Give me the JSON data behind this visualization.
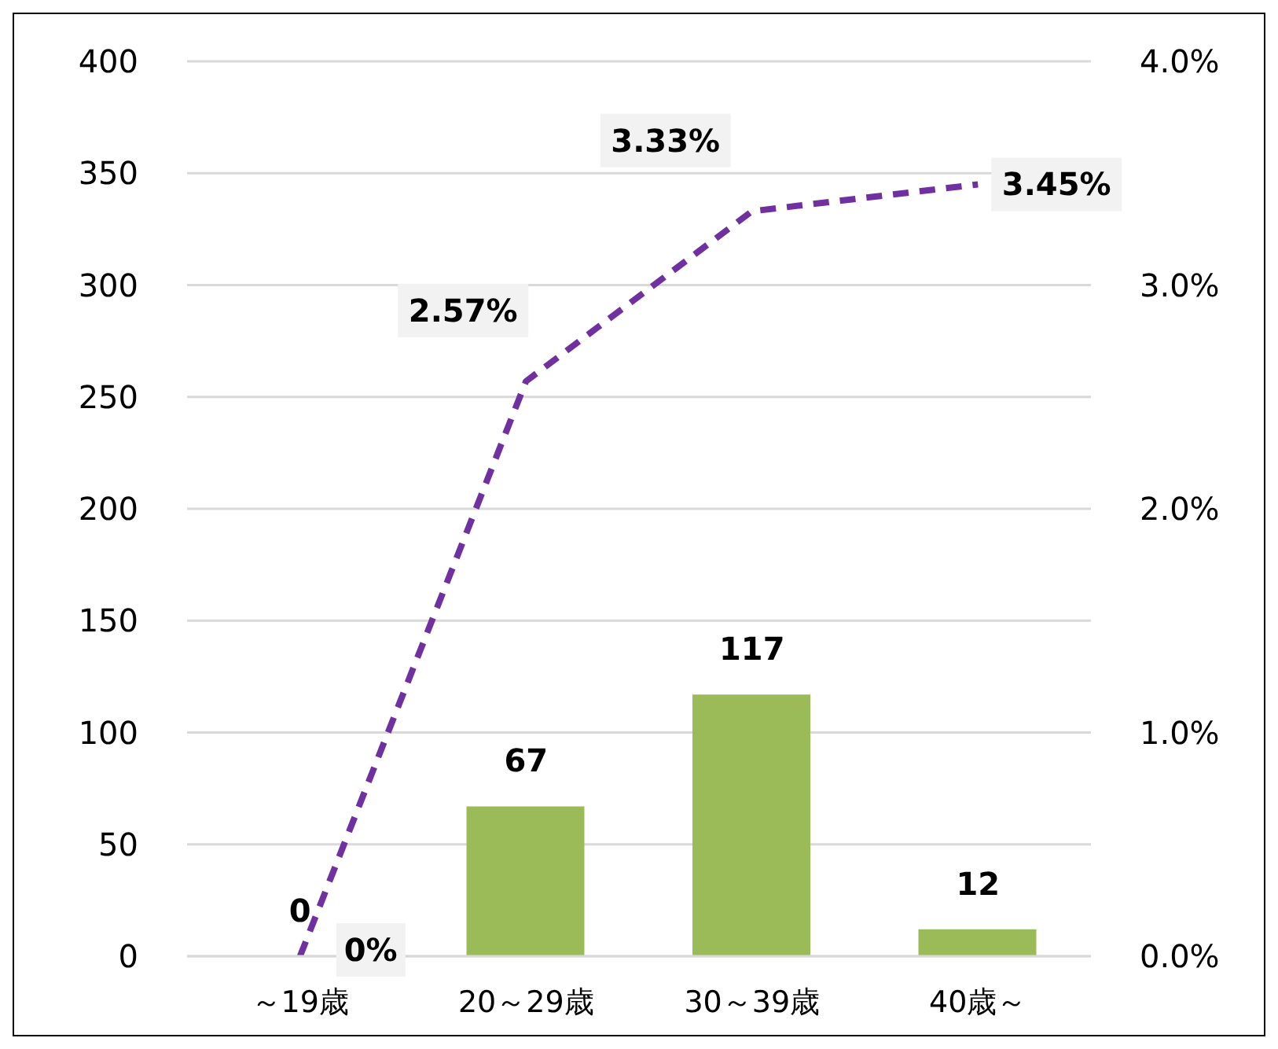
{
  "chart_data": {
    "type": "bar",
    "categories": [
      "～19歳",
      "20～29歳",
      "30～39歳",
      "40歳～"
    ],
    "series": [
      {
        "color": "#9bbb59",
        "values": [
          0,
          67,
          117,
          12
        ],
        "value_labels": [
          "0",
          "67",
          "117",
          "12"
        ]
      },
      {
        "type": "line",
        "axis": "y2",
        "color": "#7030a0",
        "values": [
          0,
          2.57,
          3.33,
          3.45
        ],
        "value_labels": [
          "0%",
          "2.57%",
          "3.33%",
          "3.45%"
        ]
      }
    ],
    "ylim": [
      0,
      400
    ],
    "yticks": [
      0,
      50,
      100,
      150,
      200,
      250,
      300,
      350,
      400
    ],
    "y2lim": [
      0,
      4
    ],
    "y2ticks": [
      {
        "value": 0,
        "label": "0.0%"
      },
      {
        "value": 1,
        "label": "1.0%"
      },
      {
        "value": 2,
        "label": "2.0%"
      },
      {
        "value": 3,
        "label": "3.0%"
      },
      {
        "value": 4,
        "label": "4.0%"
      }
    ],
    "grid": "y",
    "legend": false,
    "marker": "none",
    "line_style": "dashed"
  }
}
